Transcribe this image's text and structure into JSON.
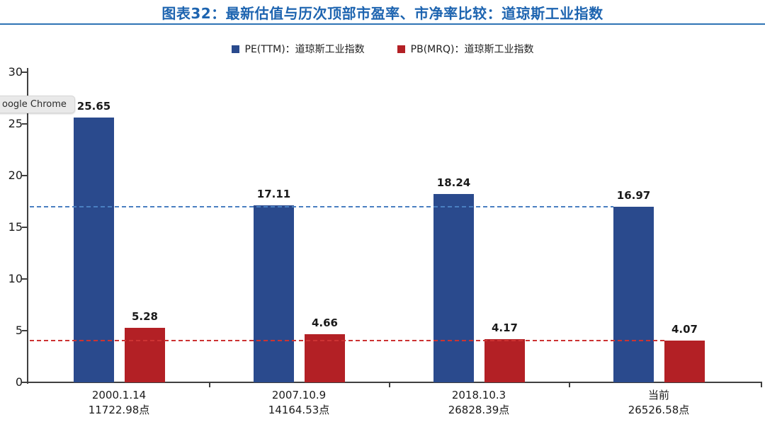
{
  "header": {
    "title": "图表32：最新估值与历次顶部市盈率、市净率比较：道琼斯工业指数",
    "title_color": "#1d64b0",
    "rule_color": "#2e74b5"
  },
  "browser_tooltip": {
    "text": "oogle Chrome"
  },
  "colors": {
    "pe_bar": "#2a4a8d",
    "pb_bar": "#b32025",
    "pe_ref_line": "#4a7fc1",
    "pb_ref_line": "#cc3333",
    "axis": "#3f3f3f"
  },
  "chart_data": {
    "type": "bar",
    "title": "图表32：最新估值与历次顶部市盈率、市净率比较：道琼斯工业指数",
    "categories": [
      {
        "line1": "2000.1.14",
        "line2": "11722.98点"
      },
      {
        "line1": "2007.10.9",
        "line2": "14164.53点"
      },
      {
        "line1": "2018.10.3",
        "line2": "26828.39点"
      },
      {
        "line1": "当前",
        "line2": "26526.58点"
      }
    ],
    "series": [
      {
        "name": "PE(TTM)：道琼斯工业指数",
        "color": "#2a4a8d",
        "values": [
          25.65,
          17.11,
          18.24,
          16.97
        ]
      },
      {
        "name": "PB(MRQ)：道琼斯工业指数",
        "color": "#b32025",
        "values": [
          5.28,
          4.66,
          4.17,
          4.07
        ]
      }
    ],
    "reference_lines": [
      {
        "value": 16.97,
        "color": "#4a7fc1",
        "style": "dashed",
        "series_index": 0
      },
      {
        "value": 4.07,
        "color": "#cc3333",
        "style": "dashed",
        "series_index": 1
      }
    ],
    "ylim": [
      0,
      30
    ],
    "yticks": [
      0,
      5,
      10,
      15,
      20,
      25,
      30
    ],
    "grid": false,
    "legend_position": "top",
    "value_labels": true,
    "value_label_decimals": 2
  }
}
